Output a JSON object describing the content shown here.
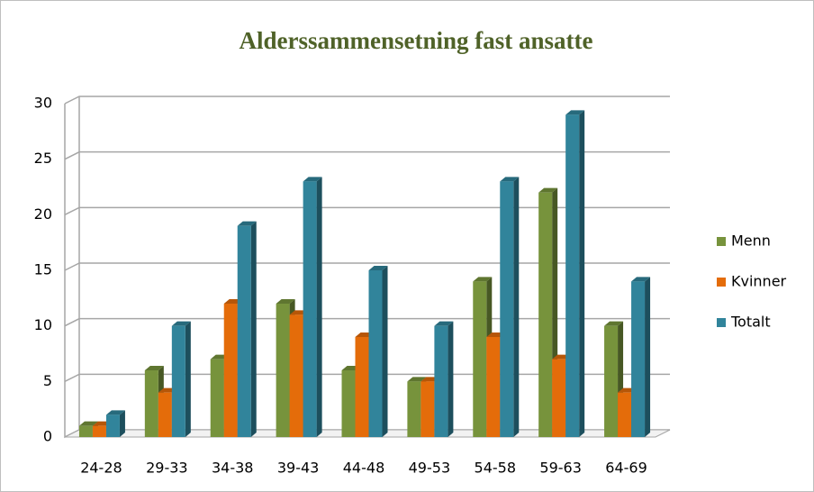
{
  "chart_data": {
    "type": "bar3d",
    "title": "Alderssammensetning fast ansatte",
    "categories": [
      "24-28",
      "29-33",
      "34-38",
      "39-43",
      "44-48",
      "49-53",
      "54-58",
      "59-63",
      "64-69"
    ],
    "series": [
      {
        "name": "Menn",
        "color": "#77933c",
        "values": [
          1,
          6,
          7,
          12,
          6,
          5,
          14,
          22,
          10
        ]
      },
      {
        "name": "Kvinner",
        "color": "#e46c0a",
        "values": [
          1,
          4,
          12,
          11,
          9,
          5,
          9,
          7,
          4
        ]
      },
      {
        "name": "Totalt",
        "color": "#31849b",
        "values": [
          2,
          10,
          19,
          23,
          15,
          10,
          23,
          29,
          14
        ]
      }
    ],
    "ylim": [
      0,
      30
    ],
    "yticks": [
      0,
      5,
      10,
      15,
      20,
      25,
      30
    ],
    "grid": true,
    "legend": "right"
  }
}
